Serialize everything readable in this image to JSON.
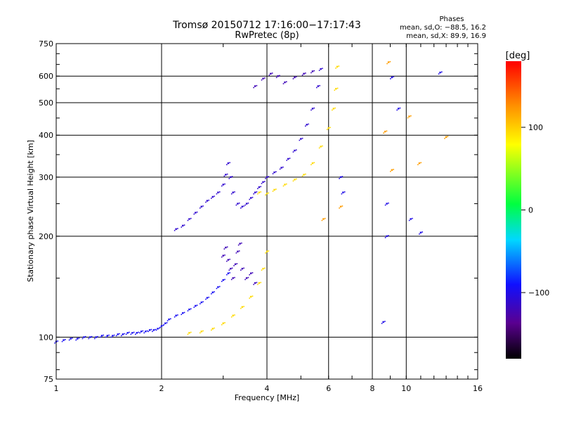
{
  "chart_data": {
    "type": "scatter",
    "title": "Tromsø 20150712 17:16:00−17:17:43",
    "subtitle": "RwPretec (8p)",
    "xlabel": "Frequency [MHz]",
    "ylabel": "Stationary phase Virtual Height [km]",
    "x_scale": "log",
    "y_scale": "log",
    "xlim": [
      1,
      16
    ],
    "ylim": [
      75,
      750
    ],
    "grid": true,
    "x_ticks": [
      1,
      2,
      4,
      6,
      8,
      10,
      16
    ],
    "x_tick_labels": [
      "1",
      "2",
      "4",
      "6",
      "8",
      "10",
      "16"
    ],
    "y_ticks": [
      75,
      100,
      200,
      300,
      400,
      500,
      600,
      750
    ],
    "y_tick_labels": [
      "75",
      "100",
      "200",
      "300",
      "400",
      "500",
      "600",
      "750"
    ],
    "phases": {
      "title": "Phases",
      "line_o": "mean, sd,O:  −88.5, 16.2",
      "line_x": "mean, sd,X:   89.9, 16.9"
    },
    "colorbar": {
      "label": "[deg]",
      "range": [
        -180,
        180
      ],
      "tick_values": [
        100,
        0,
        -100
      ],
      "tick_labels": [
        "100",
        "0",
        "−100"
      ]
    },
    "series": [
      {
        "color_phase": -95,
        "points": [
          [
            1.0,
            97
          ],
          [
            1.05,
            98
          ],
          [
            1.1,
            99
          ],
          [
            1.15,
            99
          ],
          [
            1.2,
            100
          ],
          [
            1.25,
            100
          ],
          [
            1.3,
            100
          ],
          [
            1.35,
            101
          ],
          [
            1.4,
            101
          ],
          [
            1.45,
            101
          ],
          [
            1.5,
            102
          ],
          [
            1.55,
            102
          ],
          [
            1.6,
            103
          ],
          [
            1.65,
            103
          ],
          [
            1.7,
            103
          ],
          [
            1.75,
            104
          ],
          [
            1.8,
            104
          ],
          [
            1.85,
            105
          ],
          [
            1.9,
            105
          ],
          [
            1.95,
            106
          ],
          [
            2.0,
            108
          ],
          [
            2.05,
            110
          ],
          [
            2.1,
            113
          ],
          [
            2.2,
            116
          ],
          [
            2.3,
            118
          ],
          [
            2.4,
            121
          ],
          [
            2.5,
            124
          ],
          [
            2.6,
            127
          ],
          [
            2.7,
            131
          ],
          [
            2.8,
            136
          ],
          [
            2.9,
            141
          ],
          [
            3.0,
            148
          ],
          [
            3.1,
            155
          ]
        ]
      },
      {
        "color_phase": -120,
        "points": [
          [
            3.0,
            175
          ],
          [
            3.05,
            185
          ],
          [
            3.1,
            170
          ],
          [
            3.15,
            160
          ],
          [
            3.2,
            150
          ],
          [
            3.25,
            165
          ],
          [
            3.3,
            180
          ],
          [
            3.35,
            190
          ],
          [
            3.4,
            160
          ],
          [
            3.5,
            150
          ],
          [
            3.6,
            155
          ],
          [
            3.7,
            145
          ]
        ]
      },
      {
        "color_phase": -110,
        "points": [
          [
            2.2,
            210
          ],
          [
            2.3,
            215
          ],
          [
            2.4,
            225
          ],
          [
            2.5,
            235
          ],
          [
            2.6,
            245
          ],
          [
            2.7,
            255
          ],
          [
            2.8,
            262
          ],
          [
            2.9,
            270
          ],
          [
            3.0,
            285
          ],
          [
            3.05,
            305
          ],
          [
            3.1,
            330
          ],
          [
            3.15,
            300
          ],
          [
            3.2,
            270
          ],
          [
            3.3,
            250
          ],
          [
            3.4,
            245
          ],
          [
            3.5,
            250
          ],
          [
            3.6,
            260
          ],
          [
            3.7,
            270
          ],
          [
            3.8,
            280
          ],
          [
            3.9,
            290
          ],
          [
            4.0,
            300
          ],
          [
            4.2,
            310
          ],
          [
            4.4,
            320
          ],
          [
            4.6,
            340
          ],
          [
            4.8,
            360
          ],
          [
            5.0,
            390
          ],
          [
            5.2,
            430
          ],
          [
            5.4,
            480
          ],
          [
            5.6,
            560
          ],
          [
            5.7,
            630
          ]
        ]
      },
      {
        "color_phase": -120,
        "points": [
          [
            3.7,
            560
          ],
          [
            3.9,
            590
          ],
          [
            4.1,
            610
          ],
          [
            4.3,
            600
          ],
          [
            4.5,
            575
          ],
          [
            4.8,
            595
          ],
          [
            5.1,
            610
          ],
          [
            5.4,
            620
          ]
        ]
      },
      {
        "color_phase": 95,
        "points": [
          [
            2.4,
            103
          ],
          [
            2.6,
            104
          ],
          [
            2.8,
            106
          ],
          [
            3.0,
            110
          ],
          [
            3.2,
            116
          ],
          [
            3.4,
            123
          ],
          [
            3.6,
            132
          ],
          [
            3.8,
            145
          ],
          [
            3.9,
            160
          ],
          [
            4.0,
            180
          ]
        ]
      },
      {
        "color_phase": 95,
        "points": [
          [
            3.8,
            270
          ],
          [
            4.0,
            268
          ],
          [
            4.2,
            275
          ],
          [
            4.5,
            285
          ],
          [
            4.8,
            295
          ],
          [
            5.1,
            305
          ],
          [
            5.4,
            330
          ],
          [
            5.7,
            370
          ],
          [
            6.0,
            420
          ],
          [
            6.2,
            480
          ],
          [
            6.3,
            550
          ],
          [
            6.35,
            640
          ]
        ]
      },
      {
        "color_phase": -100,
        "points": [
          [
            6.5,
            300
          ],
          [
            6.6,
            270
          ],
          [
            8.8,
            250
          ],
          [
            8.8,
            200
          ],
          [
            10.3,
            225
          ],
          [
            11.0,
            205
          ],
          [
            8.6,
            111
          ],
          [
            9.5,
            480
          ],
          [
            12.5,
            615
          ],
          [
            9.1,
            595
          ]
        ]
      },
      {
        "color_phase": 120,
        "points": [
          [
            8.9,
            660
          ],
          [
            10.2,
            455
          ],
          [
            10.9,
            330
          ],
          [
            13.0,
            395
          ],
          [
            8.7,
            410
          ],
          [
            6.5,
            245
          ],
          [
            5.8,
            225
          ],
          [
            9.1,
            315
          ]
        ]
      }
    ]
  }
}
